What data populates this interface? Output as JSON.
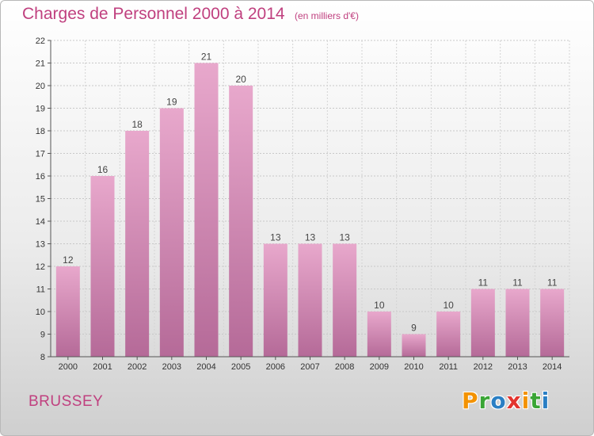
{
  "header": {
    "title": "Charges de Personnel 2000 à 2014",
    "subtitle": "(en milliers d'€)"
  },
  "footer": {
    "city": "BRUSSEY",
    "logo_text": "Proxiti",
    "logo_letters": [
      "P",
      "r",
      "o",
      "x",
      "i",
      "t",
      "i"
    ],
    "logo_colors": [
      "#f39200",
      "#3aa535",
      "#2a7fc4",
      "#e3342f",
      "#f39200",
      "#3aa535",
      "#2a7fc4"
    ]
  },
  "chart_data": {
    "type": "bar",
    "categories": [
      "2000",
      "2001",
      "2002",
      "2003",
      "2004",
      "2005",
      "2006",
      "2007",
      "2008",
      "2009",
      "2010",
      "2011",
      "2012",
      "2013",
      "2014"
    ],
    "values": [
      12,
      16,
      18,
      19,
      21,
      20,
      13,
      13,
      13,
      10,
      9,
      10,
      11,
      11,
      11
    ],
    "title": "Charges de Personnel 2000 à 2014",
    "unit": "(en milliers d'€)",
    "ylim": [
      8,
      22
    ],
    "yticks": [
      8,
      9,
      10,
      11,
      12,
      13,
      14,
      15,
      16,
      17,
      18,
      19,
      20,
      21,
      22
    ],
    "grid": true,
    "bar_color_top": "#e8a8cc",
    "bar_color_bottom": "#b56a98"
  }
}
